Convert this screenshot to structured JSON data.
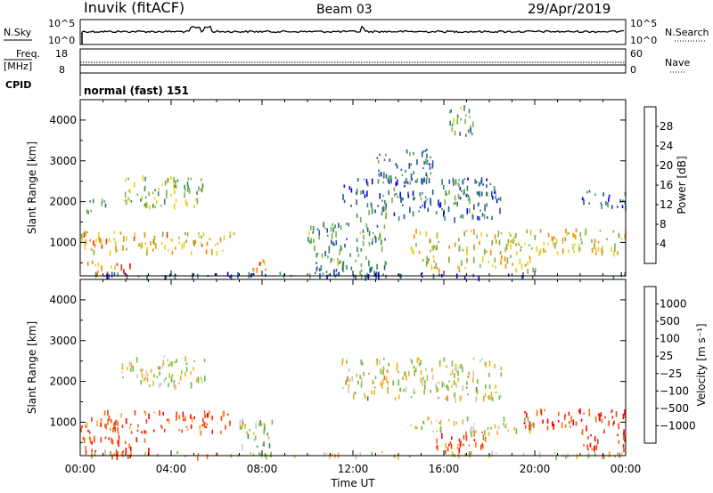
{
  "header": {
    "station": "Inuvik (fitACF)",
    "beam": "Beam 03",
    "date": "29/Apr/2019"
  },
  "strip": {
    "nsky_label": "N.Sky",
    "nsearch_label": "N.Search",
    "nsky_ticks": [
      "10^5",
      "10^0"
    ],
    "nsearch_ticks": [
      "10^5",
      "10^0"
    ],
    "freq_label": "Freq.",
    "freq_unit": "[MHz]",
    "freq_ticks": [
      "18",
      "8"
    ],
    "nave_label": "Nave",
    "nave_ticks": [
      "60",
      "0"
    ],
    "cpid_label": "CPID",
    "cpid_value": "normal (fast) 151"
  },
  "chart_data": [
    {
      "type": "heatmap",
      "name": "power",
      "ylabel": "Slant Range [km]",
      "y_ticks": [
        "1000",
        "2000",
        "3000",
        "4000"
      ],
      "ylim": [
        180,
        4500
      ],
      "colorbar_label": "Power [dB]",
      "colorbar_ticks": [
        "4",
        "8",
        "12",
        "16",
        "20",
        "24",
        "28"
      ],
      "colorbar_colors": [
        "#0000ee",
        "#2255aa",
        "#3a8a5a",
        "#7ab04a",
        "#e8d020",
        "#f08a10",
        "#e83010",
        "#ff0000"
      ],
      "scatter_bands": [
        {
          "t0": 0.2,
          "t1": 2.2,
          "r0": 200,
          "r1": 560,
          "level": 0.75
        },
        {
          "t0": 0.0,
          "t1": 6.8,
          "r0": 780,
          "r1": 1300,
          "level": 0.6
        },
        {
          "t0": 0.2,
          "t1": 1.2,
          "r0": 1780,
          "r1": 2120,
          "level": 0.4
        },
        {
          "t0": 1.8,
          "t1": 5.5,
          "r0": 1900,
          "r1": 2650,
          "level": 0.45
        },
        {
          "t0": 7.5,
          "t1": 8.3,
          "r0": 200,
          "r1": 600,
          "level": 0.7
        },
        {
          "t0": 10.0,
          "t1": 13.5,
          "r0": 200,
          "r1": 1500,
          "level": 0.35
        },
        {
          "t0": 14.5,
          "t1": 24.0,
          "r0": 780,
          "r1": 1350,
          "level": 0.55
        },
        {
          "t0": 15.0,
          "t1": 20.0,
          "r0": 350,
          "r1": 700,
          "level": 0.55
        },
        {
          "t0": 11.5,
          "t1": 18.5,
          "r0": 1600,
          "r1": 2600,
          "level": 0.25
        },
        {
          "t0": 13.0,
          "t1": 15.5,
          "r0": 2400,
          "r1": 3300,
          "level": 0.25
        },
        {
          "t0": 16.2,
          "t1": 17.3,
          "r0": 3600,
          "r1": 4400,
          "level": 0.35
        },
        {
          "t0": 0.0,
          "t1": 24.0,
          "r0": 180,
          "r1": 280,
          "level": 0.15
        },
        {
          "t0": 22.0,
          "t1": 24.0,
          "r0": 1900,
          "r1": 2300,
          "level": 0.2
        }
      ]
    },
    {
      "type": "heatmap",
      "name": "velocity",
      "xlabel": "Time UT",
      "x_ticks": [
        "00:00",
        "04:00",
        "08:00",
        "12:00",
        "16:00",
        "20:00",
        "00:00"
      ],
      "xlim": [
        0,
        24
      ],
      "ylabel": "Slant Range [km]",
      "y_ticks": [
        "1000",
        "2000",
        "3000",
        "4000"
      ],
      "ylim": [
        180,
        4500
      ],
      "colorbar_label": "Velocity [m s⁻¹]",
      "colorbar_ticks": [
        "1000",
        "500",
        "100",
        "25",
        "−25",
        "−100",
        "−500",
        "−1000"
      ],
      "colorbar_colors": [
        "#2040c0",
        "#2a6a9a",
        "#3a8a5a",
        "#70c040",
        "#c8c8c0",
        "#f0b020",
        "#f07010",
        "#f04010",
        "#ff0000"
      ],
      "scatter_bands": [
        {
          "t0": 0.0,
          "t1": 6.8,
          "r0": 780,
          "r1": 1300,
          "level": 0.8
        },
        {
          "t0": 0.0,
          "t1": 3.0,
          "r0": 200,
          "r1": 700,
          "level": 0.85
        },
        {
          "t0": 1.8,
          "t1": 5.5,
          "r0": 1900,
          "r1": 2650,
          "level": 0.5
        },
        {
          "t0": 7.0,
          "t1": 8.5,
          "r0": 200,
          "r1": 1100,
          "level": 0.45
        },
        {
          "t0": 11.5,
          "t1": 18.5,
          "r0": 1600,
          "r1": 2600,
          "level": 0.5
        },
        {
          "t0": 14.5,
          "t1": 20.0,
          "r0": 780,
          "r1": 1150,
          "level": 0.5
        },
        {
          "t0": 15.5,
          "t1": 18.0,
          "r0": 300,
          "r1": 800,
          "level": 0.8
        },
        {
          "t0": 19.5,
          "t1": 24.0,
          "r0": 900,
          "r1": 1350,
          "level": 0.85
        },
        {
          "t0": 22.0,
          "t1": 24.0,
          "r0": 350,
          "r1": 850,
          "level": 0.9
        },
        {
          "t0": 0.0,
          "t1": 24.0,
          "r0": 180,
          "r1": 300,
          "level": 0.55
        }
      ]
    }
  ]
}
